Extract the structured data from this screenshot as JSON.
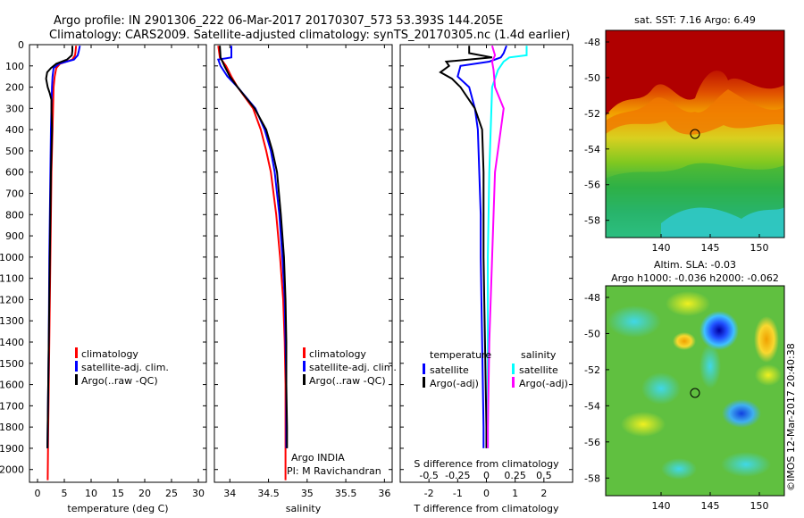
{
  "header": {
    "line1": "Argo profile: IN 2901306_222 06-Mar-2017 20170307_573 53.393S 144.205E",
    "line2": "Climatology: CARS2009. Satellite-adjusted climatology: synTS_20170305.nc (1.4d earlier)"
  },
  "colors": {
    "climatology": "#ff0000",
    "satellite": "#0000ff",
    "argo": "#000000",
    "salinity_satellite": "#00ffff",
    "salinity_argo": "#ff00ff"
  },
  "chart_data": [
    {
      "type": "line",
      "xlabel": "temperature (deg C)",
      "ylabel": "",
      "xlim": [
        -1.5,
        31.5
      ],
      "ylim": [
        2060,
        0
      ],
      "x_ticks": [
        0,
        5,
        10,
        15,
        20,
        25,
        30
      ],
      "x_ticklabels": [
        "0",
        "5",
        "10",
        "15",
        "20",
        "25",
        "30"
      ],
      "y_ticks": [
        0,
        100,
        200,
        300,
        400,
        500,
        600,
        700,
        800,
        900,
        1000,
        1100,
        1200,
        1300,
        1400,
        1500,
        1600,
        1700,
        1800,
        1900,
        2000
      ],
      "y_ticklabels": [
        "0",
        "100",
        "200",
        "300",
        "400",
        "500",
        "600",
        "700",
        "800",
        "900",
        "1000",
        "1100",
        "1200",
        "1300",
        "1400",
        "1500",
        "1600",
        "1700",
        "1800",
        "1900",
        "2000"
      ],
      "legend": [
        "climatology",
        "satellite-adj. clim.",
        "Argo(..raw -QC)"
      ],
      "series": [
        {
          "name": "climatology",
          "color": "#ff0000",
          "depth": [
            5,
            30,
            50,
            70,
            90,
            110,
            150,
            200,
            300,
            400,
            600,
            800,
            1000,
            1400,
            1800,
            2050
          ],
          "values": [
            7.2,
            7.1,
            7.0,
            6.5,
            4.2,
            3.5,
            3.2,
            3.0,
            2.9,
            2.8,
            2.6,
            2.5,
            2.4,
            2.2,
            2.0,
            1.9
          ]
        },
        {
          "name": "satellite-adj. clim.",
          "color": "#0000ff",
          "depth": [
            5,
            30,
            50,
            70,
            90,
            110,
            150,
            200,
            300,
            400,
            600,
            800,
            1000,
            1400,
            1800,
            1900
          ],
          "values": [
            7.9,
            7.7,
            7.5,
            6.8,
            4.0,
            3.0,
            2.8,
            2.7,
            2.6,
            2.5,
            2.4,
            2.3,
            2.2,
            2.1,
            1.9,
            1.85
          ]
        },
        {
          "name": "Argo(..raw -QC)",
          "color": "#000000",
          "depth": [
            5,
            30,
            50,
            70,
            90,
            110,
            130,
            160,
            200,
            230,
            260,
            300,
            400,
            600,
            800,
            1000,
            1400,
            1800,
            1900
          ],
          "values": [
            6.5,
            6.5,
            6.4,
            5.5,
            3.5,
            2.5,
            1.8,
            1.6,
            1.9,
            2.3,
            2.6,
            2.6,
            2.7,
            2.5,
            2.4,
            2.3,
            2.1,
            1.9,
            1.85
          ]
        }
      ]
    },
    {
      "type": "line",
      "xlabel": "salinity",
      "xlim": [
        33.8,
        36.1
      ],
      "ylim": [
        2060,
        0
      ],
      "x_ticks": [
        34,
        34.5,
        35,
        35.5,
        36
      ],
      "x_ticklabels": [
        "34",
        "34.5",
        "35",
        "35.5",
        "36"
      ],
      "legend": [
        "climatology",
        "satellite-adj. clim.",
        "Argo(..raw -QC)"
      ],
      "annotation": [
        "Argo INDIA",
        "PI: M Ravichandran"
      ],
      "series": [
        {
          "name": "climatology",
          "color": "#ff0000",
          "depth": [
            5,
            60,
            100,
            150,
            200,
            300,
            400,
            500,
            600,
            800,
            1000,
            1200,
            1400,
            1600,
            1800,
            2050
          ],
          "values": [
            33.85,
            33.87,
            33.95,
            34.02,
            34.1,
            34.3,
            34.4,
            34.47,
            34.53,
            34.6,
            34.65,
            34.69,
            34.71,
            34.72,
            34.72,
            34.72
          ]
        },
        {
          "name": "satellite-adj. clim.",
          "color": "#0000ff",
          "depth": [
            5,
            60,
            70,
            100,
            150,
            200,
            300,
            400,
            500,
            600,
            800,
            1000,
            1200,
            1400,
            1600,
            1800,
            1900
          ],
          "values": [
            34.02,
            34.02,
            33.85,
            33.88,
            33.97,
            34.1,
            34.33,
            34.45,
            34.53,
            34.58,
            34.64,
            34.68,
            34.71,
            34.72,
            34.73,
            34.73,
            34.73
          ]
        },
        {
          "name": "Argo(..raw -QC)",
          "color": "#000000",
          "depth": [
            5,
            60,
            100,
            150,
            200,
            300,
            400,
            500,
            600,
            800,
            1000,
            1200,
            1400,
            1600,
            1800,
            1900
          ],
          "values": [
            33.87,
            33.88,
            33.93,
            34.0,
            34.1,
            34.32,
            34.47,
            34.55,
            34.61,
            34.66,
            34.7,
            34.72,
            34.73,
            34.73,
            34.74,
            34.74
          ]
        }
      ]
    },
    {
      "type": "line",
      "xlabel": "T difference from climatology",
      "xlabel_top": "S difference from climatology",
      "xlim": [
        -3,
        3
      ],
      "ylim": [
        2060,
        0
      ],
      "x_ticks": [
        -2,
        -1,
        0,
        1,
        2
      ],
      "x_ticklabels": [
        "-2",
        "-1",
        "0",
        "1",
        "2"
      ],
      "s_ticks": [
        -2,
        -1,
        0,
        1,
        2
      ],
      "s_ticklabels": [
        "-0.5",
        "-0.25",
        "0",
        "0.25",
        "0.5"
      ],
      "legend_temperature": {
        "title": "temperature",
        "items": [
          "satellite",
          "Argo(-adj)"
        ]
      },
      "legend_salinity": {
        "title": "salinity",
        "items": [
          "satellite",
          "Argo(-adj)"
        ]
      },
      "series": [
        {
          "name": "satellite",
          "group": "temperature",
          "color": "#0000ff",
          "depth": [
            5,
            40,
            60,
            80,
            100,
            150,
            200,
            300,
            400,
            600,
            800,
            1000,
            1400,
            1800,
            1900
          ],
          "values": [
            0.7,
            0.6,
            0.5,
            0.1,
            -0.9,
            -1.0,
            -0.6,
            -0.4,
            -0.3,
            -0.25,
            -0.2,
            -0.2,
            -0.15,
            -0.1,
            -0.1
          ]
        },
        {
          "name": "Argo(-adj)",
          "group": "temperature",
          "color": "#000000",
          "depth": [
            5,
            40,
            60,
            80,
            100,
            130,
            160,
            200,
            300,
            400,
            600,
            800,
            1000,
            1400,
            1800,
            1900
          ],
          "values": [
            -0.6,
            -0.6,
            0.2,
            -1.4,
            -1.3,
            -1.6,
            -1.2,
            -0.9,
            -0.4,
            -0.15,
            -0.1,
            -0.1,
            -0.1,
            -0.05,
            0,
            0
          ]
        },
        {
          "name": "satellite",
          "group": "salinity",
          "color": "#00ffff",
          "depth": [
            5,
            50,
            60,
            80,
            120,
            200,
            400,
            600,
            1000,
            1400,
            1800,
            1900
          ],
          "values": [
            1.4,
            1.4,
            0.8,
            0.6,
            0.4,
            0.2,
            0.15,
            0.1,
            0.05,
            0.05,
            0.05,
            0.05
          ]
        },
        {
          "name": "Argo(-adj)",
          "group": "salinity",
          "color": "#ff00ff",
          "depth": [
            5,
            50,
            80,
            120,
            200,
            300,
            400,
            600,
            1000,
            1400,
            1800,
            1900
          ],
          "values": [
            0.2,
            0.3,
            0.2,
            0.25,
            0.3,
            0.6,
            0.5,
            0.3,
            0.2,
            0.1,
            0.05,
            0.05
          ]
        }
      ]
    }
  ],
  "maps": {
    "sst": {
      "title": "sat. SST: 7.16 Argo: 6.49",
      "x_ticklabels": [
        "140",
        "145",
        "150"
      ],
      "y_ticklabels": [
        "-48",
        "-50",
        "-52",
        "-54",
        "-56",
        "-58"
      ]
    },
    "sla": {
      "title1": "Altim. SLA: -0.03",
      "title2": "Argo h1000: -0.036 h2000: -0.062",
      "x_ticklabels": [
        "140",
        "145",
        "150"
      ],
      "y_ticklabels": [
        "-48",
        "-50",
        "-52",
        "-54",
        "-56",
        "-58"
      ]
    },
    "credit": "©IMOS 12-Mar-2017 20:40:38"
  }
}
